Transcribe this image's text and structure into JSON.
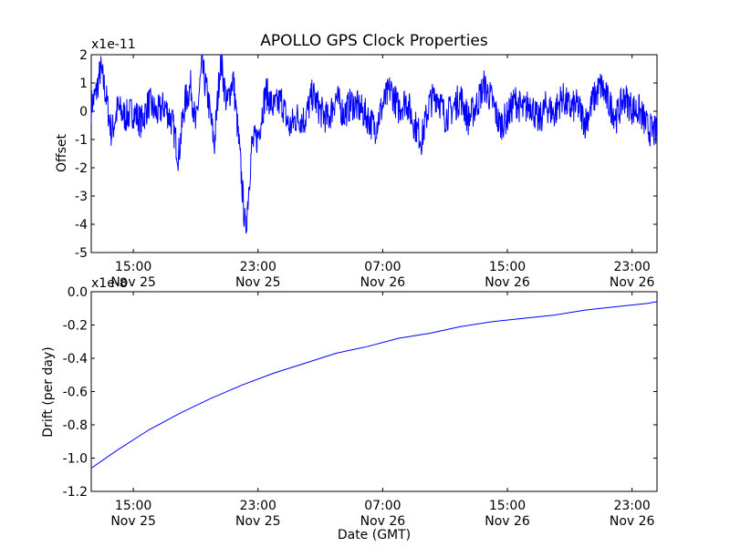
{
  "figure": {
    "title": "APOLLO GPS Clock Properties",
    "xlabel": "Date (GMT)"
  },
  "chart_data": [
    {
      "type": "line",
      "title": "APOLLO GPS Clock Properties",
      "ylabel": "Offset",
      "y_multiplier_label": "x1e-11",
      "xlabel": "",
      "xlim_hours": [
        12.3,
        48.6
      ],
      "ylim": [
        -5,
        2
      ],
      "y_ticks": [
        "2",
        "1",
        "0",
        "-1",
        "-2",
        "-3",
        "-4",
        "-5"
      ],
      "y_tick_values": [
        2,
        1,
        0,
        -1,
        -2,
        -3,
        -4,
        -5
      ],
      "x_ticks": [
        {
          "time": "15:00",
          "date": "Nov 25",
          "hour": 15
        },
        {
          "time": "23:00",
          "date": "Nov 25",
          "hour": 23
        },
        {
          "time": "07:00",
          "date": "Nov 26",
          "hour": 31
        },
        {
          "time": "15:00",
          "date": "Nov 26",
          "hour": 39
        },
        {
          "time": "23:00",
          "date": "Nov 26",
          "hour": 47
        }
      ],
      "series": [
        {
          "color": "#0000ff",
          "hours": [
            12.3,
            12.6,
            12.9,
            13.2,
            13.6,
            14.0,
            14.5,
            15.0,
            15.5,
            16.0,
            16.5,
            17.0,
            17.5,
            17.9,
            18.3,
            18.7,
            19.0,
            19.4,
            19.8,
            20.2,
            20.6,
            21.0,
            21.4,
            21.8,
            22.2,
            22.6,
            23.0,
            23.5,
            24.0,
            24.5,
            25.0,
            25.5,
            26.0,
            26.5,
            27.0,
            27.5,
            28.0,
            28.5,
            29.0,
            29.5,
            30.0,
            30.5,
            31.0,
            31.5,
            32.0,
            32.5,
            33.0,
            33.5,
            34.0,
            34.5,
            35.0,
            35.5,
            36.0,
            36.5,
            37.0,
            37.5,
            38.0,
            38.5,
            39.0,
            39.5,
            40.0,
            40.5,
            41.0,
            41.5,
            42.0,
            42.5,
            43.0,
            43.5,
            44.0,
            44.5,
            45.0,
            45.5,
            46.0,
            46.5,
            47.0,
            47.5,
            48.0,
            48.6
          ],
          "offset": [
            0.2,
            0.6,
            1.5,
            0.7,
            -0.8,
            0.1,
            -0.2,
            0.0,
            -0.4,
            0.3,
            -0.1,
            0.2,
            -0.4,
            -1.6,
            0.3,
            0.9,
            -0.6,
            1.6,
            0.4,
            -1.2,
            1.9,
            0.2,
            1.2,
            -1.3,
            -4.3,
            -1.2,
            -0.9,
            0.7,
            0.1,
            0.4,
            -0.6,
            -0.2,
            -0.3,
            0.6,
            0.0,
            -0.3,
            0.5,
            -0.1,
            0.3,
            0.1,
            -0.2,
            -0.6,
            0.2,
            0.8,
            0.1,
            0.4,
            -0.4,
            -1.0,
            0.3,
            0.6,
            -0.2,
            0.1,
            0.5,
            -0.3,
            0.2,
            0.9,
            0.4,
            -0.5,
            -0.2,
            0.4,
            0.0,
            0.3,
            -0.4,
            0.2,
            -0.1,
            0.5,
            0.1,
            0.2,
            -0.4,
            0.4,
            0.9,
            0.3,
            -0.2,
            0.5,
            0.1,
            0.0,
            -0.6,
            -0.8
          ]
        }
      ]
    },
    {
      "type": "line",
      "ylabel": "Drift (per day)",
      "y_multiplier_label": "x1e-8",
      "xlabel": "Date (GMT)",
      "xlim_hours": [
        12.3,
        48.6
      ],
      "ylim": [
        -1.2,
        0.0
      ],
      "y_ticks": [
        "0.0",
        "-0.2",
        "-0.4",
        "-0.6",
        "-0.8",
        "-1.0",
        "-1.2"
      ],
      "y_tick_values": [
        0.0,
        -0.2,
        -0.4,
        -0.6,
        -0.8,
        -1.0,
        -1.2
      ],
      "x_ticks": [
        {
          "time": "15:00",
          "date": "Nov 25",
          "hour": 15
        },
        {
          "time": "23:00",
          "date": "Nov 25",
          "hour": 23
        },
        {
          "time": "07:00",
          "date": "Nov 26",
          "hour": 31
        },
        {
          "time": "15:00",
          "date": "Nov 26",
          "hour": 39
        },
        {
          "time": "23:00",
          "date": "Nov 26",
          "hour": 47
        }
      ],
      "series": [
        {
          "color": "#0000ff",
          "hours": [
            12.3,
            14.0,
            16.0,
            18.0,
            20.0,
            22.0,
            24.0,
            26.0,
            28.0,
            30.0,
            32.0,
            34.0,
            36.0,
            38.0,
            40.0,
            42.0,
            44.0,
            46.0,
            48.0,
            48.6
          ],
          "drift": [
            -1.06,
            -0.95,
            -0.83,
            -0.73,
            -0.64,
            -0.56,
            -0.49,
            -0.43,
            -0.37,
            -0.33,
            -0.28,
            -0.25,
            -0.21,
            -0.18,
            -0.16,
            -0.14,
            -0.11,
            -0.09,
            -0.07,
            -0.06
          ]
        }
      ]
    }
  ]
}
